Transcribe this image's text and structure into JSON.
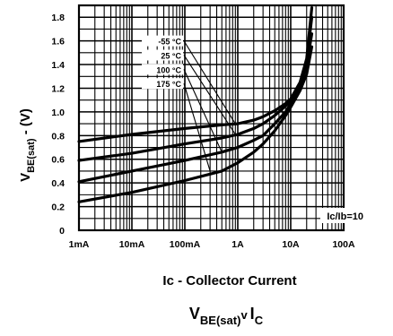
{
  "chart_data": {
    "type": "line",
    "title": "V_BE(sat) v I_C",
    "title_parts": {
      "v_main": "V",
      "v_sub": "BE(sat)",
      "sep": "v",
      "i_main": "I",
      "i_sub": "C"
    },
    "xlabel": "Ic - Collector Current",
    "ylabel": "V_BE(sat) - (V)",
    "ylabel_parts": {
      "main": "V",
      "sub": "BE(sat)",
      "suffix": " - (V)"
    },
    "x_scale": "log",
    "x_unit": "A",
    "xlim": [
      0.001,
      100
    ],
    "ylim": [
      0,
      1.9
    ],
    "x_ticks": [
      {
        "value": 0.001,
        "label": "1mA"
      },
      {
        "value": 0.01,
        "label": "10mA"
      },
      {
        "value": 0.1,
        "label": "100mA"
      },
      {
        "value": 1,
        "label": "1A"
      },
      {
        "value": 10,
        "label": "10A"
      },
      {
        "value": 100,
        "label": "100A"
      }
    ],
    "y_ticks": [
      {
        "value": 0,
        "label": "0"
      },
      {
        "value": 0.2,
        "label": "0.2"
      },
      {
        "value": 0.4,
        "label": "0.4"
      },
      {
        "value": 0.6,
        "label": "0.6"
      },
      {
        "value": 0.8,
        "label": "0.8"
      },
      {
        "value": 1.0,
        "label": "1.0"
      },
      {
        "value": 1.2,
        "label": "1.2"
      },
      {
        "value": 1.4,
        "label": "1.4"
      },
      {
        "value": 1.6,
        "label": "1.6"
      },
      {
        "value": 1.8,
        "label": "1.8"
      }
    ],
    "grid": true,
    "annotation": "Ic/Ib=10",
    "series": [
      {
        "name": "-55 °C",
        "points": [
          [
            0.001,
            0.75
          ],
          [
            0.01,
            0.81
          ],
          [
            0.1,
            0.86
          ],
          [
            0.5,
            0.89
          ],
          [
            1,
            0.9
          ],
          [
            2,
            0.93
          ],
          [
            3,
            0.96
          ],
          [
            5,
            1.01
          ],
          [
            8,
            1.07
          ],
          [
            10,
            1.11
          ],
          [
            15,
            1.25
          ],
          [
            20,
            1.45
          ],
          [
            25,
            1.88
          ]
        ]
      },
      {
        "name": "25 °C",
        "points": [
          [
            0.001,
            0.59
          ],
          [
            0.01,
            0.65
          ],
          [
            0.1,
            0.73
          ],
          [
            0.5,
            0.78
          ],
          [
            1,
            0.81
          ],
          [
            2,
            0.86
          ],
          [
            3,
            0.9
          ],
          [
            5,
            0.97
          ],
          [
            8,
            1.05
          ],
          [
            10,
            1.1
          ],
          [
            15,
            1.24
          ],
          [
            20,
            1.42
          ],
          [
            25,
            1.8
          ]
        ]
      },
      {
        "name": "100 °C",
        "points": [
          [
            0.001,
            0.41
          ],
          [
            0.01,
            0.5
          ],
          [
            0.1,
            0.59
          ],
          [
            0.5,
            0.66
          ],
          [
            1,
            0.7
          ],
          [
            2,
            0.76
          ],
          [
            3,
            0.8
          ],
          [
            5,
            0.9
          ],
          [
            8,
            1.0
          ],
          [
            10,
            1.07
          ],
          [
            15,
            1.22
          ],
          [
            20,
            1.4
          ],
          [
            25,
            1.66
          ]
        ]
      },
      {
        "name": "175 °C",
        "points": [
          [
            0.001,
            0.24
          ],
          [
            0.01,
            0.32
          ],
          [
            0.1,
            0.42
          ],
          [
            0.5,
            0.5
          ],
          [
            1,
            0.57
          ],
          [
            2,
            0.66
          ],
          [
            3,
            0.73
          ],
          [
            5,
            0.84
          ],
          [
            8,
            0.97
          ],
          [
            10,
            1.04
          ],
          [
            15,
            1.18
          ],
          [
            20,
            1.32
          ],
          [
            25,
            1.55
          ]
        ]
      }
    ],
    "legend": {
      "placement": "upper-middle, leader lines to curves"
    }
  }
}
